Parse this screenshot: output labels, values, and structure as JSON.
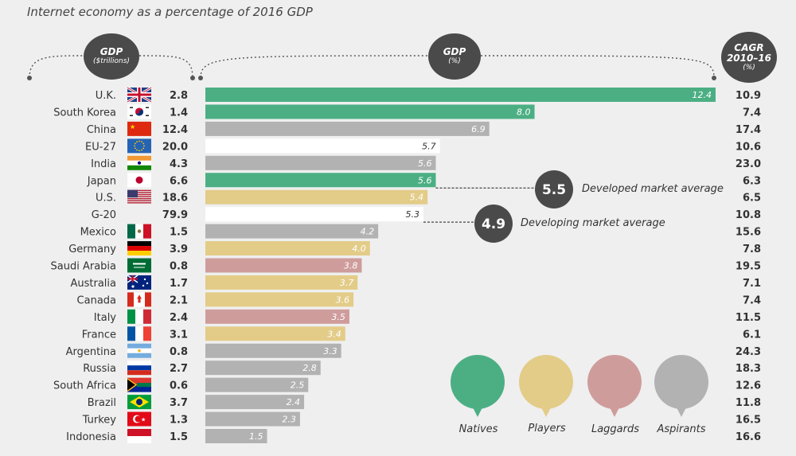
{
  "title": "Internet economy as a percentage of 2016 GDP",
  "headers": {
    "gdp_trillions": {
      "line1": "GDP",
      "line2": "($trillions)"
    },
    "gdp_pct": {
      "line1": "GDP",
      "line2": "(%)"
    },
    "cagr": {
      "line1": "CAGR",
      "line2": "2010–16",
      "line3": "(%)"
    }
  },
  "annotations": [
    {
      "value": "5.5",
      "label": "Developed market average",
      "row": "Japan"
    },
    {
      "value": "4.9",
      "label": "Developing market average",
      "row": "G-20"
    }
  ],
  "legend": [
    {
      "label": "Natives",
      "color": "#4caf84"
    },
    {
      "label": "Players",
      "color": "#e3cc88"
    },
    {
      "label": "Laggards",
      "color": "#cf9c9c"
    },
    {
      "label": "Aspirants",
      "color": "#b2b2b2"
    }
  ],
  "colors": {
    "natives": "#4caf84",
    "players": "#e3cc88",
    "laggards": "#cf9c9c",
    "aspirants": "#b2b2b2",
    "none": "#ffffff",
    "dark": "#4a4a4a"
  },
  "chart_data": {
    "type": "bar",
    "orientation": "horizontal",
    "title": "Internet economy as a percentage of 2016 GDP",
    "columns": [
      "GDP ($trillions)",
      "GDP (%)",
      "CAGR 2010–16 (%)"
    ],
    "rows": [
      {
        "country": "U.K.",
        "flag": "uk-flag",
        "gdp": "2.8",
        "pct": 12.4,
        "cagr": "10.9",
        "group": "natives"
      },
      {
        "country": "South Korea",
        "flag": "south-korea-flag",
        "gdp": "1.4",
        "pct": 8.0,
        "cagr": "7.4",
        "group": "natives"
      },
      {
        "country": "China",
        "flag": "china-flag",
        "gdp": "12.4",
        "pct": 6.9,
        "cagr": "17.4",
        "group": "aspirants"
      },
      {
        "country": "EU-27",
        "flag": "eu-flag",
        "gdp": "20.0",
        "pct": 5.7,
        "cagr": "10.6",
        "group": "none"
      },
      {
        "country": "India",
        "flag": "india-flag",
        "gdp": "4.3",
        "pct": 5.6,
        "cagr": "23.0",
        "group": "aspirants"
      },
      {
        "country": "Japan",
        "flag": "japan-flag",
        "gdp": "6.6",
        "pct": 5.6,
        "cagr": "6.3",
        "group": "natives"
      },
      {
        "country": "U.S.",
        "flag": "us-flag",
        "gdp": "18.6",
        "pct": 5.4,
        "cagr": "6.5",
        "group": "players"
      },
      {
        "country": "G-20",
        "flag": "",
        "gdp": "79.9",
        "pct": 5.3,
        "cagr": "10.8",
        "group": "none"
      },
      {
        "country": "Mexico",
        "flag": "mexico-flag",
        "gdp": "1.5",
        "pct": 4.2,
        "cagr": "15.6",
        "group": "aspirants"
      },
      {
        "country": "Germany",
        "flag": "germany-flag",
        "gdp": "3.9",
        "pct": 4.0,
        "cagr": "7.8",
        "group": "players"
      },
      {
        "country": "Saudi Arabia",
        "flag": "saudi-arabia-flag",
        "gdp": "0.8",
        "pct": 3.8,
        "cagr": "19.5",
        "group": "laggards"
      },
      {
        "country": "Australia",
        "flag": "australia-flag",
        "gdp": "1.7",
        "pct": 3.7,
        "cagr": "7.1",
        "group": "players"
      },
      {
        "country": "Canada",
        "flag": "canada-flag",
        "gdp": "2.1",
        "pct": 3.6,
        "cagr": "7.4",
        "group": "players"
      },
      {
        "country": "Italy",
        "flag": "italy-flag",
        "gdp": "2.4",
        "pct": 3.5,
        "cagr": "11.5",
        "group": "laggards"
      },
      {
        "country": "France",
        "flag": "france-flag",
        "gdp": "3.1",
        "pct": 3.4,
        "cagr": "6.1",
        "group": "players"
      },
      {
        "country": "Argentina",
        "flag": "argentina-flag",
        "gdp": "0.8",
        "pct": 3.3,
        "cagr": "24.3",
        "group": "aspirants"
      },
      {
        "country": "Russia",
        "flag": "russia-flag",
        "gdp": "2.7",
        "pct": 2.8,
        "cagr": "18.3",
        "group": "aspirants"
      },
      {
        "country": "South Africa",
        "flag": "south-africa-flag",
        "gdp": "0.6",
        "pct": 2.5,
        "cagr": "12.6",
        "group": "aspirants"
      },
      {
        "country": "Brazil",
        "flag": "brazil-flag",
        "gdp": "3.7",
        "pct": 2.4,
        "cagr": "11.8",
        "group": "aspirants"
      },
      {
        "country": "Turkey",
        "flag": "turkey-flag",
        "gdp": "1.3",
        "pct": 2.3,
        "cagr": "16.5",
        "group": "aspirants"
      },
      {
        "country": "Indonesia",
        "flag": "indonesia-flag",
        "gdp": "1.5",
        "pct": 1.5,
        "cagr": "16.6",
        "group": "aspirants"
      }
    ],
    "xlim": [
      0,
      12.4
    ],
    "grid": false,
    "legend_position": "bottom-right"
  }
}
